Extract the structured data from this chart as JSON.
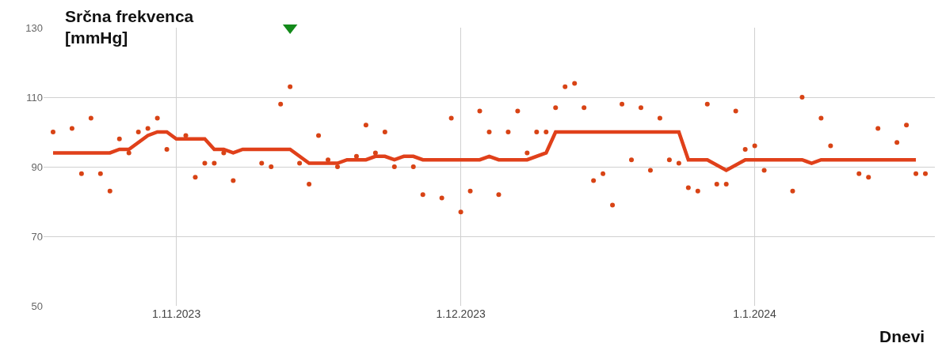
{
  "chart_data": {
    "type": "scatter",
    "ylabel": "Srčna frekvenca [mmHg]",
    "xlabel": "Dnevi",
    "xlim": [
      "2023-10-18",
      "2024-01-20"
    ],
    "xticks": [
      {
        "value": "2023-11-01",
        "label": "1.11.2023"
      },
      {
        "value": "2023-12-01",
        "label": "1.12.2023"
      },
      {
        "value": "2024-01-01",
        "label": "1.1.2024"
      }
    ],
    "ylim": [
      50,
      130
    ],
    "yticks": [
      50,
      70,
      90,
      110,
      130
    ],
    "grid": true,
    "series": [
      {
        "marker": "circle",
        "color": "#d84315",
        "x": [
          "2023-10-19",
          "2023-10-21",
          "2023-10-22",
          "2023-10-23",
          "2023-10-24",
          "2023-10-25",
          "2023-10-26",
          "2023-10-27",
          "2023-10-28",
          "2023-10-29",
          "2023-10-30",
          "2023-10-31",
          "2023-11-02",
          "2023-11-03",
          "2023-11-04",
          "2023-11-05",
          "2023-11-06",
          "2023-11-07",
          "2023-11-10",
          "2023-11-11",
          "2023-11-12",
          "2023-11-13",
          "2023-11-14",
          "2023-11-15",
          "2023-11-16",
          "2023-11-17",
          "2023-11-18",
          "2023-11-20",
          "2023-11-21",
          "2023-11-22",
          "2023-11-23",
          "2023-11-24",
          "2023-11-26",
          "2023-11-27",
          "2023-11-29",
          "2023-11-30",
          "2023-12-01",
          "2023-12-02",
          "2023-12-03",
          "2023-12-04",
          "2023-12-05",
          "2023-12-06",
          "2023-12-07",
          "2023-12-08",
          "2023-12-09",
          "2023-12-10",
          "2023-12-11",
          "2023-12-12",
          "2023-12-13",
          "2023-12-14",
          "2023-12-15",
          "2023-12-16",
          "2023-12-17",
          "2023-12-18",
          "2023-12-19",
          "2023-12-20",
          "2023-12-21",
          "2023-12-22",
          "2023-12-23",
          "2023-12-24",
          "2023-12-25",
          "2023-12-26",
          "2023-12-27",
          "2023-12-28",
          "2023-12-29",
          "2023-12-30",
          "2023-12-31",
          "2024-01-01",
          "2024-01-02",
          "2024-01-05",
          "2024-01-06",
          "2024-01-08",
          "2024-01-09",
          "2024-01-12",
          "2024-01-13",
          "2024-01-14",
          "2024-01-16",
          "2024-01-17",
          "2024-01-18",
          "2024-01-19"
        ],
        "values": [
          100,
          101,
          88,
          104,
          88,
          83,
          98,
          94,
          100,
          101,
          104,
          95,
          99,
          87,
          91,
          91,
          94,
          86,
          91,
          90,
          108,
          113,
          91,
          85,
          99,
          92,
          90,
          93,
          102,
          94,
          100,
          90,
          90,
          82,
          81,
          104,
          77,
          83,
          106,
          100,
          82,
          100,
          106,
          94,
          100,
          100,
          107,
          113,
          114,
          107,
          86,
          88,
          79,
          108,
          92,
          107,
          89,
          104,
          92,
          91,
          84,
          83,
          108,
          85,
          85,
          106,
          95,
          96,
          89,
          83,
          110,
          104,
          96,
          88,
          87,
          101,
          97,
          102,
          88,
          88
        ]
      },
      {
        "type": "line",
        "marker": "none",
        "color": "#e0401a",
        "x": [
          "2023-10-19",
          "2023-10-25",
          "2023-10-26",
          "2023-10-27",
          "2023-10-29",
          "2023-10-30",
          "2023-10-31",
          "2023-11-01",
          "2023-11-04",
          "2023-11-05",
          "2023-11-06",
          "2023-11-07",
          "2023-11-08",
          "2023-11-13",
          "2023-11-15",
          "2023-11-18",
          "2023-11-19",
          "2023-11-21",
          "2023-11-22",
          "2023-11-23",
          "2023-11-24",
          "2023-11-25",
          "2023-11-26",
          "2023-11-27",
          "2023-12-03",
          "2023-12-04",
          "2023-12-05",
          "2023-12-08",
          "2023-12-10",
          "2023-12-11",
          "2023-12-24",
          "2023-12-25",
          "2023-12-27",
          "2023-12-29",
          "2023-12-31",
          "2024-01-06",
          "2024-01-07",
          "2024-01-08",
          "2024-01-18"
        ],
        "values": [
          94,
          94,
          95,
          95,
          99,
          100,
          100,
          98,
          98,
          95,
          95,
          94,
          95,
          95,
          91,
          91,
          92,
          92,
          93,
          93,
          92,
          93,
          93,
          92,
          92,
          93,
          92,
          92,
          94,
          100,
          100,
          92,
          92,
          89,
          92,
          92,
          91,
          92,
          92
        ]
      },
      {
        "marker": "triangle",
        "color": "#138a1a",
        "x": [
          "2023-11-13"
        ],
        "values": [
          130
        ]
      }
    ]
  }
}
